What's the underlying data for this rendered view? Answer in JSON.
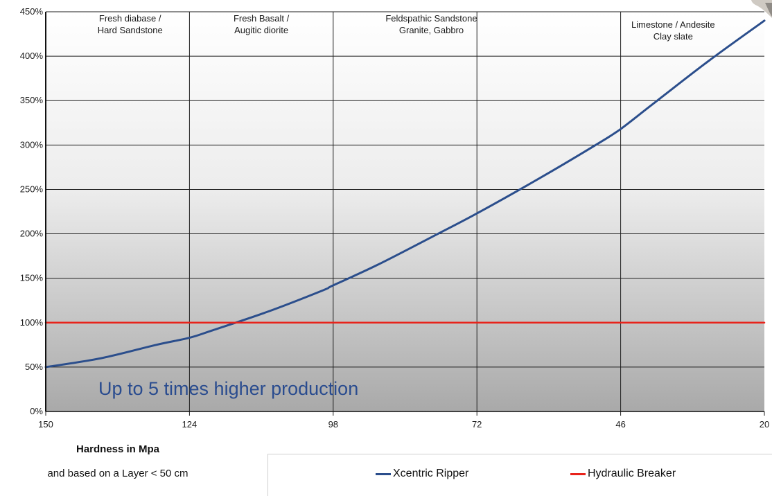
{
  "chart_data": {
    "type": "line",
    "title": "",
    "xlabel": "Hardness in Mpa",
    "xlabel_note": "and based on a Layer < 50 cm",
    "ylabel": "",
    "x_ticks": [
      "150",
      "124",
      "98",
      "72",
      "46",
      "20"
    ],
    "x_range": [
      150,
      20
    ],
    "y_ticks": [
      "0%",
      "50%",
      "100%",
      "150%",
      "200%",
      "250%",
      "300%",
      "350%",
      "400%",
      "450%"
    ],
    "ylim": [
      0,
      450
    ],
    "grid": true,
    "legend_position": "bottom",
    "rock_categories": [
      {
        "lines": [
          "Fresh diabase /",
          "Hard Sandstone"
        ]
      },
      {
        "lines": [
          "Fresh Basalt /",
          "Augitic diorite"
        ]
      },
      {
        "lines": [
          "Feldspathic Sandstone",
          "Granite, Gabbro"
        ]
      },
      {
        "lines": [
          "Limestone / Andesite",
          "Clay slate"
        ]
      }
    ],
    "annotation": "Up to 5 times higher production",
    "series": [
      {
        "name": "Xcentric Ripper",
        "color": "#2b4e8c",
        "x": [
          150,
          140,
          130,
          124,
          120,
          110,
          100,
          98,
          90,
          80,
          72,
          60,
          50,
          46,
          40,
          30,
          20
        ],
        "y": [
          50,
          60,
          75,
          83,
          91,
          112,
          136,
          142,
          165,
          197,
          223,
          265,
          302,
          318,
          347,
          395,
          440
        ]
      },
      {
        "name": "Hydraulic Breaker",
        "color": "#e8231b",
        "x": [
          150,
          20
        ],
        "y": [
          100,
          100
        ]
      }
    ]
  }
}
